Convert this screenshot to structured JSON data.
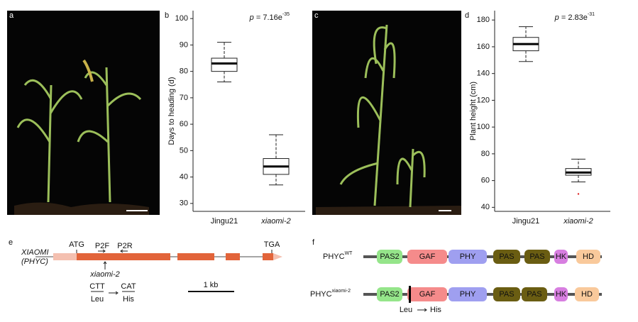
{
  "panel_labels": [
    "a",
    "b",
    "c",
    "d",
    "e",
    "f"
  ],
  "chart_data": [
    {
      "type": "box",
      "y_label": "Days to heading (d)",
      "annotation": {
        "symbol": "p",
        "text": " = 7.16e",
        "exponent": "-35"
      },
      "categories": [
        "Jingu21",
        "xiaomi-2"
      ],
      "boxes": [
        {
          "min": 76,
          "q1": 80,
          "median": 83,
          "q3": 85,
          "max": 91
        },
        {
          "min": 37,
          "q1": 41,
          "median": 44,
          "q3": 47,
          "max": 56
        }
      ],
      "outliers": [
        [],
        []
      ],
      "ylim": [
        27,
        103
      ],
      "yticks": [
        30,
        40,
        50,
        60,
        70,
        80,
        90,
        100
      ]
    },
    {
      "type": "box",
      "y_label": "Plant height (cm)",
      "annotation": {
        "symbol": "p",
        "text": " = 2.83e",
        "exponent": "-31"
      },
      "categories": [
        "Jingu21",
        "xiaomi-2"
      ],
      "boxes": [
        {
          "min": 149,
          "q1": 157,
          "median": 162,
          "q3": 167,
          "max": 175
        },
        {
          "min": 59,
          "q1": 64,
          "median": 66,
          "q3": 69,
          "max": 76
        }
      ],
      "outliers": [
        [],
        [
          50
        ]
      ],
      "ylim": [
        37,
        187
      ],
      "yticks": [
        40,
        60,
        80,
        100,
        120,
        140,
        160,
        180
      ]
    }
  ],
  "gene_diagram": {
    "gene": "XIAOMI",
    "alias": "(PHYC)",
    "start": "ATG",
    "stop": "TGA",
    "primers": [
      "P2F",
      "P2R"
    ],
    "mutant": "xiaomi-2",
    "codons": [
      "CTT",
      "CAT"
    ],
    "amino_acids": [
      "Leu",
      "His"
    ],
    "scale": "1 kb"
  },
  "protein_diagram": {
    "rows": [
      {
        "name": "PHYC",
        "superscript": "WT"
      },
      {
        "name": "PHYC",
        "superscript": "xiaomi-2"
      }
    ],
    "domains": [
      "PAS2",
      "GAF",
      "PHY",
      "PAS",
      "PAS",
      "HK",
      "HD"
    ],
    "mutation": [
      "Leu",
      "His"
    ]
  }
}
